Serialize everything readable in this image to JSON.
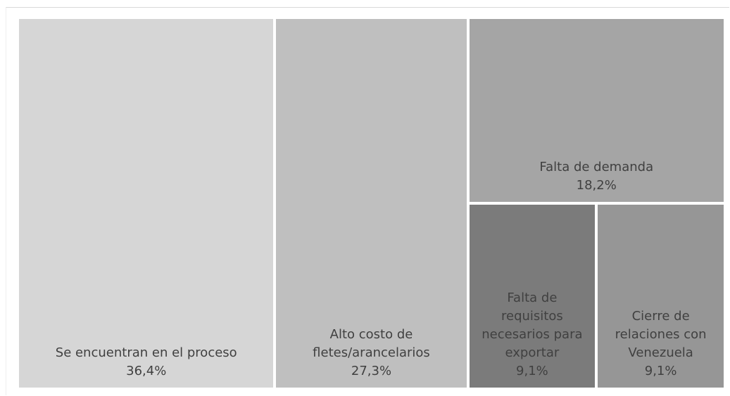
{
  "chart_data": {
    "type": "treemap",
    "categories": [
      "Se encuentran en el proceso",
      "Alto costo de fletes/arancelarios",
      "Falta de demanda",
      "Falta de requisitos necesarios para exportar",
      "Cierre de relaciones con Venezuela"
    ],
    "values": [
      36.4,
      27.3,
      18.2,
      9.1,
      9.1
    ],
    "value_labels": [
      "36,4%",
      "27,3%",
      "18,2%",
      "9,1%",
      "9,1%"
    ],
    "colors": [
      "#d6d6d6",
      "#bfbfbf",
      "#a5a5a5",
      "#7b7b7b",
      "#969696"
    ]
  }
}
